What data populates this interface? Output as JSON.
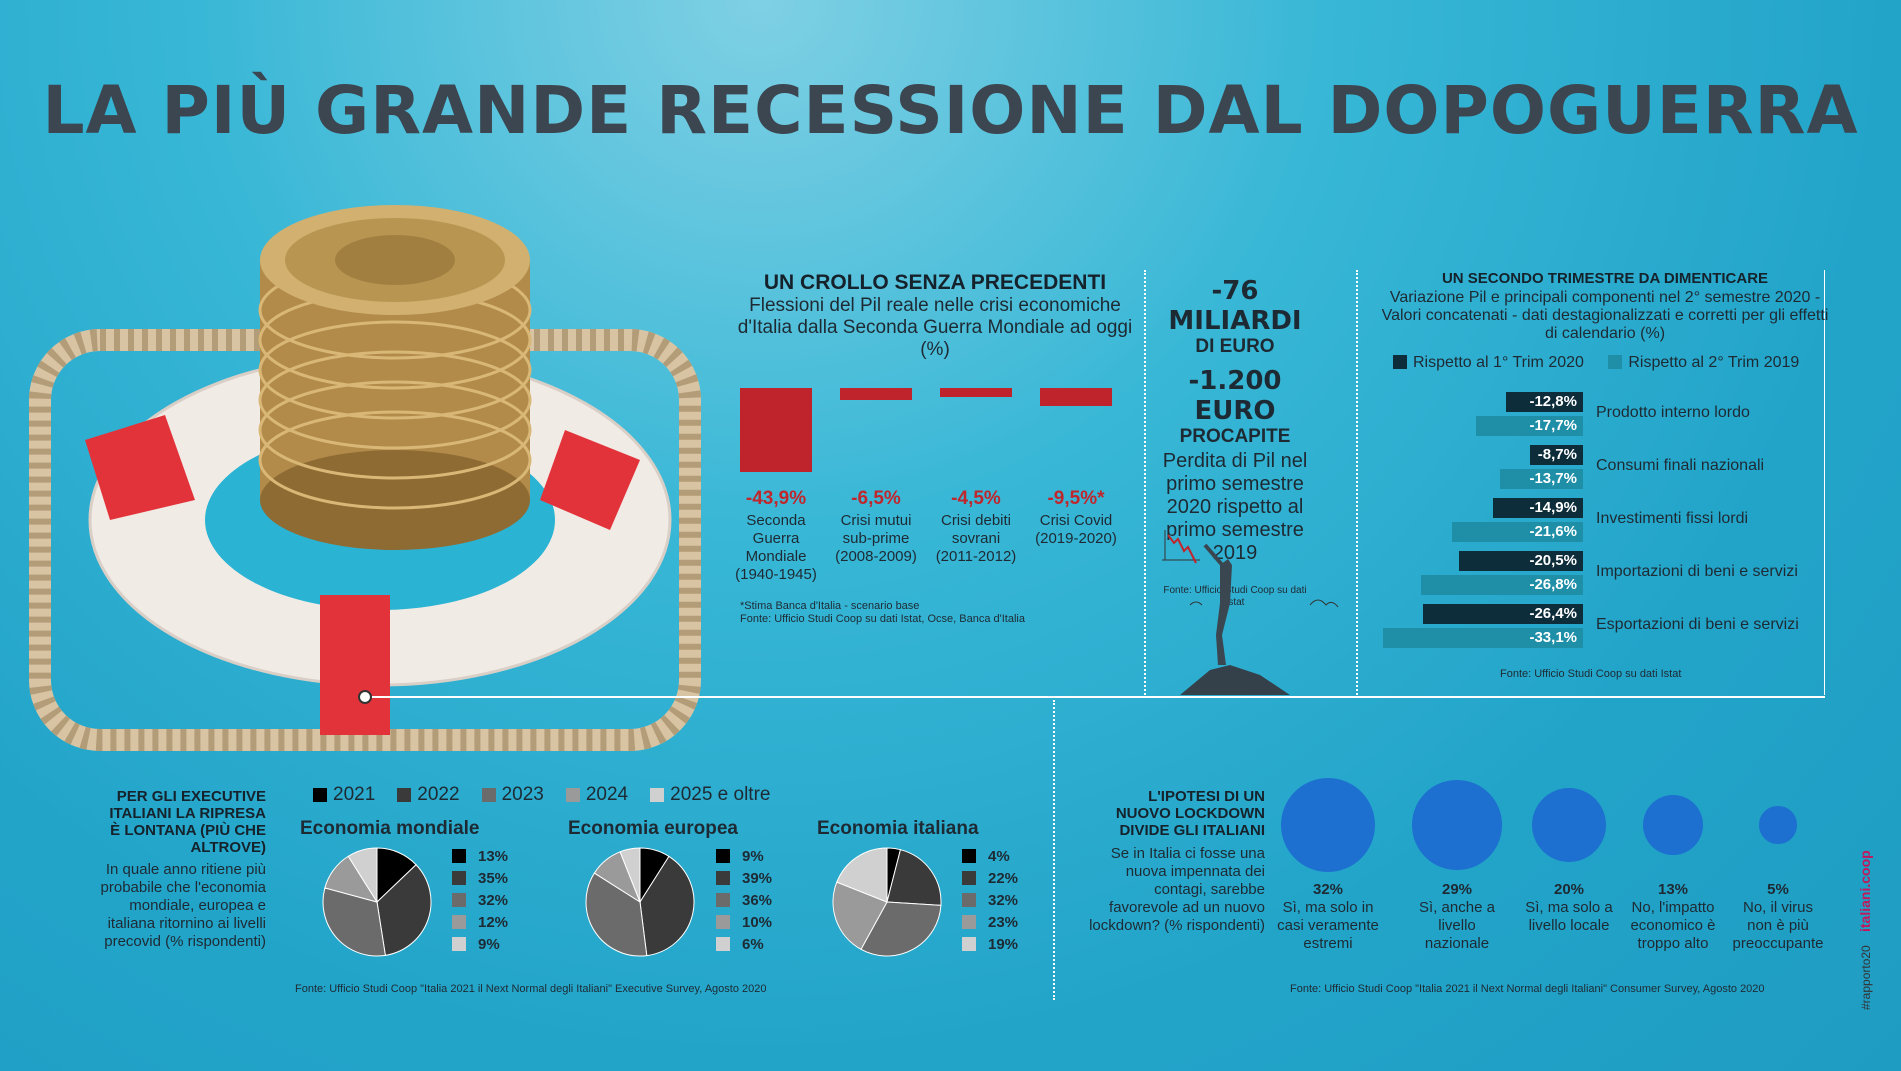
{
  "title": "LA PIÙ GRANDE RECESSIONE DAL DOPOGUERRA",
  "colors": {
    "red": "#bf242c",
    "dark": "#0e2d3b",
    "teal": "#1f8fa8",
    "bubble": "#1d6fd0"
  },
  "crash": {
    "title": "UN CROLLO SENZA PRECEDENTI",
    "subtitle": "Flessioni del Pil reale nelle crisi economiche d'Italia dalla Seconda Guerra Mondiale ad oggi (%)",
    "note1": "*Stima Banca d'Italia - scenario base",
    "note2": "Fonte: Ufficio Studi Coop su dati Istat, Ocse, Banca d'Italia"
  },
  "loss": {
    "line1": "-76 MILIARDI",
    "line2": "DI EURO",
    "line3": "-1.200 EURO",
    "line4": "PROCAPITE",
    "desc": "Perdita di Pil nel primo semestre 2020 rispetto al primo semestre 2019",
    "src": "Fonte: Ufficio Studi Coop su dati Istat"
  },
  "quarter": {
    "title": "UN SECONDO TRIMESTRE DA DIMENTICARE",
    "subtitle": "Variazione Pil  e principali componenti nel 2° semestre 2020 - Valori concatenati - dati destagionalizzati e corretti per gli effetti di calendario (%)",
    "legend": [
      "Rispetto al 1° Trim 2020",
      "Rispetto al 2° Trim 2019"
    ],
    "src": "Fonte: Ufficio Studi Coop su dati Istat"
  },
  "exec": {
    "title": "PER GLI EXECUTIVE ITALIANI LA RIPRESA È LONTANA (PIÙ CHE ALTROVE)",
    "subtitle": "In quale anno ritiene più probabile che l'economia mondiale, europea e italiana ritornino ai livelli precovid (% rispondenti)",
    "years": [
      "2021",
      "2022",
      "2023",
      "2024",
      "2025 e oltre"
    ],
    "src": "Fonte: Ufficio Studi Coop \"Italia 2021 il Next Normal degli Italiani\" Executive Survey, Agosto 2020"
  },
  "lockdown": {
    "title": "L'IPOTESI DI UN NUOVO LOCKDOWN DIVIDE GLI ITALIANI",
    "subtitle": "Se in Italia ci fosse una nuova impennata dei contagi, sarebbe favorevole ad un nuovo lockdown? (% rispondenti)",
    "src": "Fonte: Ufficio Studi Coop \"Italia 2021 il Next Normal degli Italiani\" Consumer Survey, Agosto 2020"
  },
  "brand": {
    "text1": "#rapporto20",
    "text2": "italiani.coop"
  },
  "chart_data": [
    {
      "type": "bar",
      "categories": [
        "Seconda Guerra Mondiale (1940-1945)",
        "Crisi mutui sub-prime (2008-2009)",
        "Crisi debiti sovrani (2011-2012)",
        "Crisi Covid (2019-2020)"
      ],
      "values": [
        -43.9,
        -6.5,
        -4.5,
        -9.5
      ],
      "value_labels": [
        "-43,9%",
        "-6,5%",
        "-4,5%",
        "-9,5%*"
      ],
      "cat_lines": [
        [
          "Seconda",
          "Guerra",
          "Mondiale",
          "(1940-1945)"
        ],
        [
          "Crisi mutui",
          "sub-prime",
          "(2008-2009)"
        ],
        [
          "Crisi debiti",
          "sovrani",
          "(2011-2012)"
        ],
        [
          "Crisi Covid",
          "(2019-2020)"
        ]
      ],
      "title": "UN CROLLO SENZA PRECEDENTI"
    },
    {
      "type": "bar",
      "orientation": "horizontal",
      "categories": [
        "Prodotto interno lordo",
        "Consumi finali nazionali",
        "Investimenti fissi lordi",
        "Importazioni di beni e servizi",
        "Esportazioni di beni e servizi"
      ],
      "series": [
        {
          "name": "Rispetto al 1° Trim 2020",
          "values": [
            -12.8,
            -8.7,
            -14.9,
            -20.5,
            -26.4
          ],
          "labels": [
            "-12,8%",
            "-8,7%",
            "-14,9%",
            "-20,5%",
            "-26,4%"
          ]
        },
        {
          "name": "Rispetto al 2° Trim 2019",
          "values": [
            -17.7,
            -13.7,
            -21.6,
            -26.8,
            -33.1
          ],
          "labels": [
            "-17,7%",
            "-13,7%",
            "-21,6%",
            "-26,8%",
            "-33,1%"
          ]
        }
      ],
      "title": "UN SECONDO TRIMESTRE DA DIMENTICARE"
    },
    {
      "type": "pie",
      "title": "Economia mondiale",
      "categories": [
        "2021",
        "2022",
        "2023",
        "2024",
        "2025 e oltre"
      ],
      "values": [
        13,
        35,
        32,
        12,
        9
      ],
      "labels": [
        "13%",
        "35%",
        "32%",
        "12%",
        "9%"
      ]
    },
    {
      "type": "pie",
      "title": "Economia europea",
      "categories": [
        "2021",
        "2022",
        "2023",
        "2024",
        "2025 e oltre"
      ],
      "values": [
        9,
        39,
        36,
        10,
        6
      ],
      "labels": [
        "9%",
        "39%",
        "36%",
        "10%",
        "6%"
      ]
    },
    {
      "type": "pie",
      "title": "Economia italiana",
      "categories": [
        "2021",
        "2022",
        "2023",
        "2024",
        "2025 e oltre"
      ],
      "values": [
        4,
        22,
        32,
        23,
        19
      ],
      "labels": [
        "4%",
        "22%",
        "32%",
        "23%",
        "19%"
      ]
    },
    {
      "type": "bubble",
      "categories": [
        "Sì, ma solo in casi veramente estremi",
        "Sì, anche a livello nazionale",
        "Sì, ma solo a livello locale",
        "No, l'impatto economico è troppo alto",
        "No, il virus non è più preoccupante"
      ],
      "cat_lines": [
        [
          "Sì, ma solo in",
          "casi veramente",
          "estremi"
        ],
        [
          "Sì, anche a",
          "livello",
          "nazionale"
        ],
        [
          "Sì, ma solo a",
          "livello locale"
        ],
        [
          "No, l'impatto",
          "economico è",
          "troppo alto"
        ],
        [
          "No, il virus",
          "non è più",
          "preoccupante"
        ]
      ],
      "values": [
        32,
        29,
        20,
        13,
        5
      ],
      "labels": [
        "32%",
        "29%",
        "20%",
        "13%",
        "5%"
      ]
    }
  ]
}
